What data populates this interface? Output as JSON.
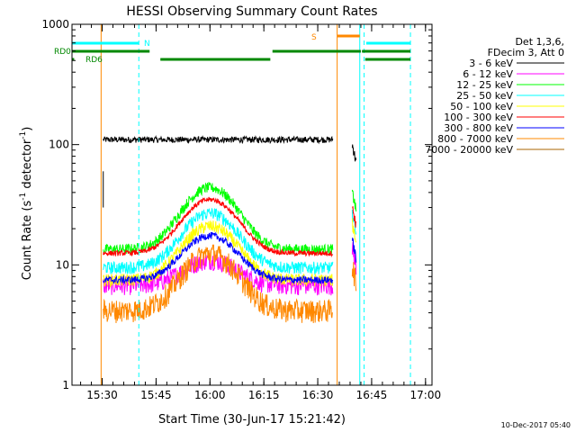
{
  "chart_data": {
    "type": "line",
    "title": "HESSI Observing Summary Count Rates",
    "xlabel": "Start Time (30-Jun-17 15:21:42)",
    "ylabel": "Count Rate (s",
    "ylabel_sup": "-1",
    "ylabel_mid": " detector",
    "ylabel_sup2": "-1",
    "ylabel_end": ")",
    "yscale": "log",
    "ylim": [
      1,
      1000
    ],
    "xlim_minutes": [
      15.36,
      17.03
    ],
    "y_ticks": [
      "1",
      "10",
      "100",
      "1000"
    ],
    "x_ticks": [
      {
        "t": 15.5,
        "label": "15:30"
      },
      {
        "t": 15.75,
        "label": "15:45"
      },
      {
        "t": 16.0,
        "label": "16:00"
      },
      {
        "t": 16.25,
        "label": "16:15"
      },
      {
        "t": 16.5,
        "label": "16:30"
      },
      {
        "t": 16.75,
        "label": "16:45"
      },
      {
        "t": 17.0,
        "label": "17:00"
      }
    ],
    "legend_header": [
      "Det 1,3,6,",
      "FDecim 3, Att 0"
    ],
    "series": [
      {
        "name": "3 - 6 keV",
        "color": "#000000",
        "base": 110,
        "peak": 0,
        "noise": 0.06,
        "startT": 15.505,
        "endT": 16.57,
        "postBase": 100
      },
      {
        "name": "6 - 12 keV",
        "color": "#ff00ff",
        "base": 6.8,
        "peak": 11,
        "noise": 0.18,
        "startT": 15.505,
        "endT": 16.57,
        "postBase": 14
      },
      {
        "name": "12 - 25 keV",
        "color": "#00ff00",
        "base": 13.5,
        "peak": 44,
        "noise": 0.1,
        "startT": 15.505,
        "endT": 16.57,
        "postBase": 40
      },
      {
        "name": "25 - 50 keV",
        "color": "#00ffff",
        "base": 9.5,
        "peak": 27,
        "noise": 0.12,
        "startT": 15.505,
        "endT": 16.57,
        "postBase": 27
      },
      {
        "name": "50 - 100 keV",
        "color": "#ffff00",
        "base": 7.5,
        "peak": 21,
        "noise": 0.12,
        "startT": 15.505,
        "endT": 16.57,
        "postBase": 22
      },
      {
        "name": "100 - 300 keV",
        "color": "#ff0000",
        "base": 12.5,
        "peak": 35,
        "noise": 0.05,
        "startT": 15.505,
        "endT": 16.57,
        "postBase": 30
      },
      {
        "name": "300 - 800 keV",
        "color": "#0000ff",
        "base": 7.5,
        "peak": 17.5,
        "noise": 0.07,
        "startT": 15.505,
        "endT": 16.57,
        "postBase": 16
      },
      {
        "name": "800 - 7000 keV",
        "color": "#ff8800",
        "base": 4.2,
        "peak": 12.5,
        "noise": 0.22,
        "startT": 15.505,
        "endT": 16.57,
        "postBase": 10
      },
      {
        "name": "7000 - 20000 keV",
        "color": "#aa6600",
        "base": 0,
        "peak": 0,
        "noise": 0,
        "startT": 15.505,
        "endT": 16.57,
        "postBase": 0
      }
    ],
    "flags": [
      {
        "label": "RD0",
        "color": "#008800",
        "y_level": 1,
        "segments": [
          [
            15.36,
            15.72
          ],
          [
            16.29,
            16.7
          ],
          [
            16.705,
            16.93
          ]
        ]
      },
      {
        "label": "RD6",
        "color": "#008800",
        "y_level": 0,
        "segments": [
          [
            15.36,
            15.37
          ],
          [
            15.77,
            16.28
          ],
          [
            16.72,
            16.93
          ]
        ]
      },
      {
        "label": "N",
        "color": "#00ffff",
        "y_level": 2,
        "segments": [
          [
            15.36,
            15.67
          ],
          [
            16.725,
            16.93
          ]
        ]
      },
      {
        "label": "S",
        "color": "#ff8800",
        "y_level": 3,
        "segments": [
          [
            16.59,
            16.695
          ]
        ]
      }
    ],
    "vlines": [
      {
        "t": 15.36,
        "color": "#00ffff",
        "style": "solid"
      },
      {
        "t": 15.67,
        "color": "#00ffff",
        "style": "dashed"
      },
      {
        "t": 15.495,
        "color": "#ff8800",
        "style": "solid"
      },
      {
        "t": 16.59,
        "color": "#ff8800",
        "style": "solid"
      },
      {
        "t": 16.695,
        "color": "#00ffff",
        "style": "solid"
      },
      {
        "t": 16.715,
        "color": "#00ffff",
        "style": "dashed"
      },
      {
        "t": 16.93,
        "color": "#00ffff",
        "style": "dashed"
      }
    ],
    "gap": [
      16.57,
      16.66
    ],
    "timestamp": "10-Dec-2017 05:40"
  }
}
